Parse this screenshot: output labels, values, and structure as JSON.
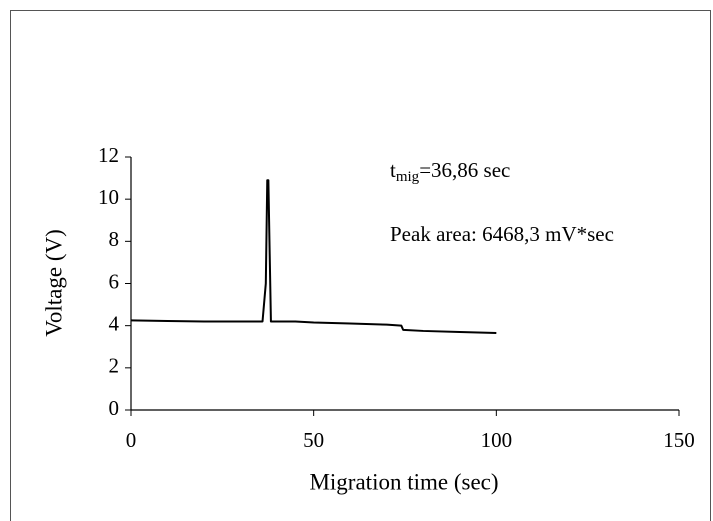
{
  "chart_data": {
    "type": "line",
    "x_label": "Migration time (sec)",
    "y_label": "Voltage (V)",
    "x": [
      0,
      10,
      20,
      30,
      36,
      36.9,
      37.3,
      37.6,
      37.9,
      38.3,
      39,
      45,
      50,
      60,
      70,
      74,
      74.5,
      80,
      90,
      100
    ],
    "series": [
      {
        "color": "#000000",
        "values": [
          4.25,
          4.22,
          4.2,
          4.2,
          4.2,
          6,
          10.9,
          10.9,
          8,
          4.2,
          4.2,
          4.2,
          4.15,
          4.1,
          4.05,
          4.0,
          3.8,
          3.75,
          3.7,
          3.65
        ]
      }
    ],
    "xlim": [
      0,
      150
    ],
    "xticks": [
      0,
      50,
      100,
      150
    ],
    "ylim": [
      0,
      12
    ],
    "yticks": [
      0,
      2,
      4,
      6,
      8,
      10,
      12
    ],
    "grid": false,
    "annotations": [
      {
        "base": "t",
        "subscript": "mig",
        "text": "=36,86 sec"
      },
      {
        "text": "Peak area: 6468,3 mV*sec"
      }
    ]
  }
}
